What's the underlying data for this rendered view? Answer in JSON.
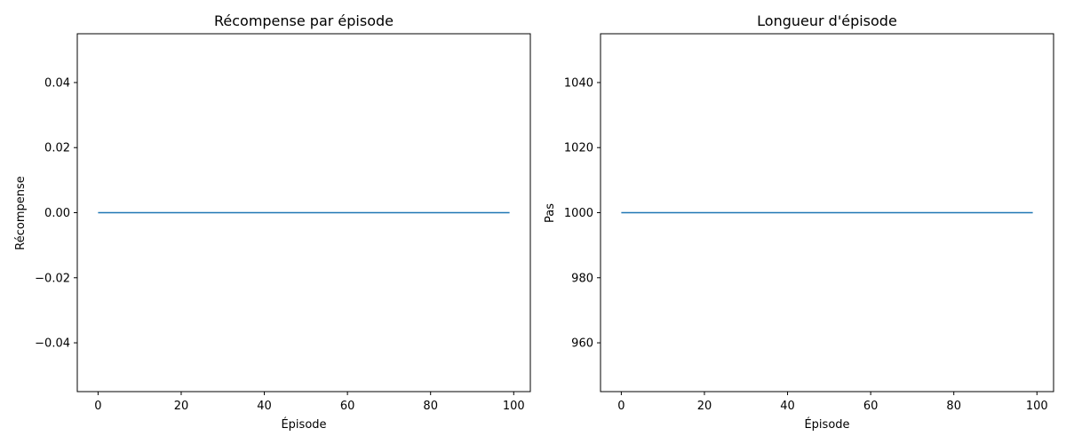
{
  "chart_data": [
    {
      "type": "line",
      "title": "Récompense par épisode",
      "xlabel": "Épisode",
      "ylabel": "Récompense",
      "xlim": [
        -5,
        104
      ],
      "ylim": [
        -0.055,
        0.055
      ],
      "xticks": [
        0,
        20,
        40,
        60,
        80,
        100
      ],
      "xtick_labels": [
        "0",
        "20",
        "40",
        "60",
        "80",
        "100"
      ],
      "yticks": [
        -0.04,
        -0.02,
        0.0,
        0.02,
        0.04
      ],
      "ytick_labels": [
        "−0.04",
        "−0.02",
        "0.00",
        "0.02",
        "0.04"
      ],
      "grid": false,
      "series": [
        {
          "color": "#1f77b4",
          "x": [
            0,
            99
          ],
          "y": [
            0,
            0
          ]
        }
      ]
    },
    {
      "type": "line",
      "title": "Longueur d'épisode",
      "xlabel": "Épisode",
      "ylabel": "Pas",
      "xlim": [
        -5,
        104
      ],
      "ylim": [
        945,
        1055
      ],
      "xticks": [
        0,
        20,
        40,
        60,
        80,
        100
      ],
      "xtick_labels": [
        "0",
        "20",
        "40",
        "60",
        "80",
        "100"
      ],
      "yticks": [
        960,
        980,
        1000,
        1020,
        1040
      ],
      "ytick_labels": [
        "960",
        "980",
        "1000",
        "1020",
        "1040"
      ],
      "grid": false,
      "series": [
        {
          "color": "#1f77b4",
          "x": [
            0,
            99
          ],
          "y": [
            1000,
            1000
          ]
        }
      ]
    }
  ]
}
